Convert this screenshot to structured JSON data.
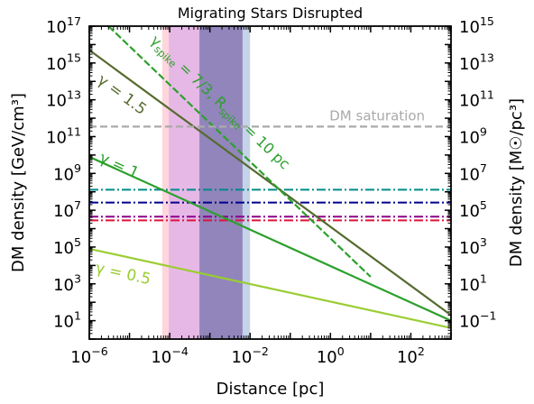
{
  "chart_data": {
    "type": "line",
    "title": "Migrating Stars Disrupted",
    "xlabel": "Distance [pc]",
    "ylabel": "DM density [GeV/cm³]",
    "ylabel_right": "DM density [M☉/pc³]",
    "x_scale": "log",
    "y_scale": "log",
    "xlim": [
      1e-06,
      1000
    ],
    "ylim": [
      1,
      1e+17
    ],
    "ylim_right": [
      0.01,
      1000000000000000.0
    ],
    "x_ticks": [
      {
        "base": "10",
        "exp": "−6",
        "value": 1e-06
      },
      {
        "base": "10",
        "exp": "−4",
        "value": 0.0001
      },
      {
        "base": "10",
        "exp": "−2",
        "value": 0.01
      },
      {
        "base": "10",
        "exp": "0",
        "value": 1
      },
      {
        "base": "10",
        "exp": "2",
        "value": 100
      }
    ],
    "y_ticks_left": [
      {
        "base": "10",
        "exp": "1",
        "value": 10
      },
      {
        "base": "10",
        "exp": "3",
        "value": 1000
      },
      {
        "base": "10",
        "exp": "5",
        "value": 100000.0
      },
      {
        "base": "10",
        "exp": "7",
        "value": 10000000.0
      },
      {
        "base": "10",
        "exp": "9",
        "value": 1000000000.0
      },
      {
        "base": "10",
        "exp": "11",
        "value": 100000000000.0
      },
      {
        "base": "10",
        "exp": "13",
        "value": 10000000000000.0
      },
      {
        "base": "10",
        "exp": "15",
        "value": 1000000000000000.0
      },
      {
        "base": "10",
        "exp": "17",
        "value": 1e+17
      }
    ],
    "y_ticks_right": [
      {
        "base": "10",
        "exp": "−1",
        "value": 0.1
      },
      {
        "base": "10",
        "exp": "1",
        "value": 10
      },
      {
        "base": "10",
        "exp": "3",
        "value": 1000
      },
      {
        "base": "10",
        "exp": "5",
        "value": 100000.0
      },
      {
        "base": "10",
        "exp": "7",
        "value": 10000000.0
      },
      {
        "base": "10",
        "exp": "9",
        "value": 1000000000.0
      },
      {
        "base": "10",
        "exp": "11",
        "value": 100000000000.0
      },
      {
        "base": "10",
        "exp": "13",
        "value": 10000000000000.0
      },
      {
        "base": "10",
        "exp": "15",
        "value": 1000000000000000.0
      }
    ],
    "series": [
      {
        "label": "γ = 1.5",
        "color": "#556b2f",
        "style": "solid",
        "x": [
          1e-06,
          1000
        ],
        "y": [
          5000000000000000.0,
          20
        ]
      },
      {
        "label": "γ = 1",
        "color": "#2ca02c",
        "style": "solid",
        "x": [
          1e-06,
          1000
        ],
        "y": [
          8000000000.0,
          10
        ]
      },
      {
        "label": "γ = 0.5",
        "color": "#9acd32",
        "style": "solid",
        "x": [
          1e-06,
          1000
        ],
        "y": [
          80000.0,
          4
        ]
      },
      {
        "label": "γspike = 7/3, Rspike = 10 pc",
        "color": "#2ca02c",
        "style": "dashed",
        "x": [
          3e-06,
          10
        ],
        "y": [
          1e+17,
          2400
        ]
      },
      {
        "name": "DM saturation",
        "color": "#aaaaaa",
        "style": "dashed",
        "x": [
          1e-06,
          1000
        ],
        "y": [
          350000000000.0,
          350000000000.0
        ]
      }
    ],
    "hlines": [
      {
        "color": "#008b8b",
        "style": "dashdot",
        "y": 130000000.0
      },
      {
        "color": "#00008b",
        "style": "dashdot",
        "y": 26000000.0
      },
      {
        "color": "#8b008b",
        "style": "dashdot",
        "y": 4500000.0
      },
      {
        "color": "#dc143c",
        "style": "dashdot",
        "y": 2800000.0
      }
    ],
    "bands": [
      {
        "color": "#ffc0cb",
        "opacity": 0.65,
        "x": [
          6.5e-05,
          9.5e-05
        ]
      },
      {
        "color": "#dda0dd",
        "opacity": 0.75,
        "x": [
          9.5e-05,
          0.00055
        ]
      },
      {
        "color": "#9fb6d8",
        "opacity": 0.6,
        "x": [
          0.00055,
          0.01
        ]
      },
      {
        "color": "#7b64a8",
        "opacity": 0.7,
        "x": [
          0.00055,
          0.0065
        ]
      }
    ]
  }
}
